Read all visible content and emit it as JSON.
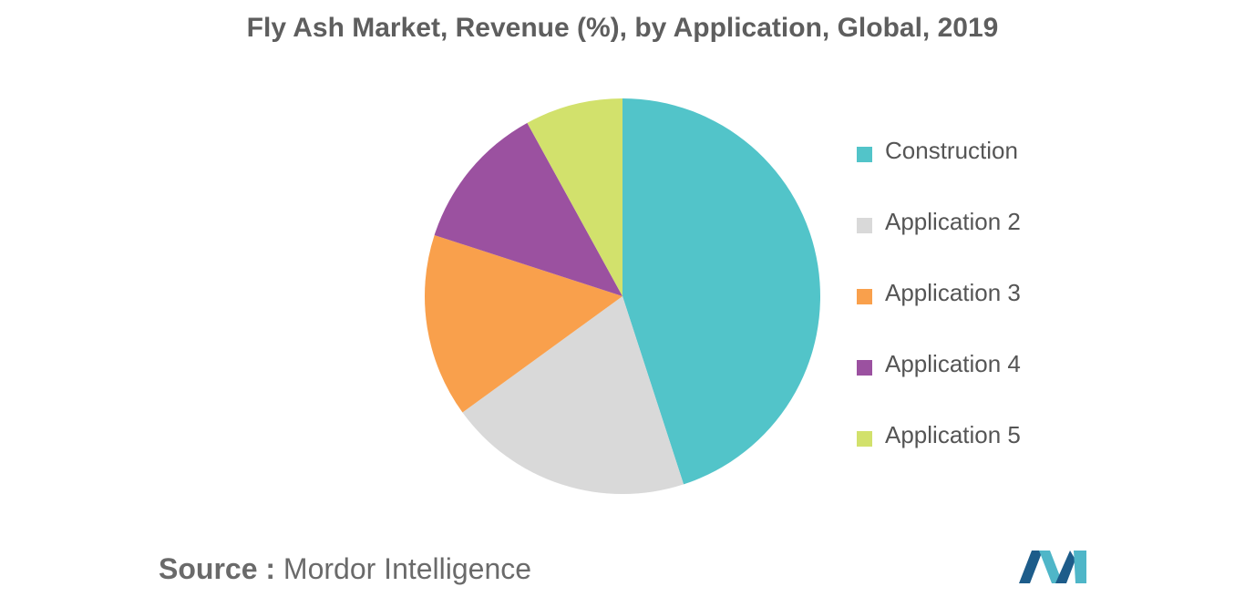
{
  "chart_data": {
    "type": "pie",
    "title": "Fly Ash Market, Revenue (%), by Application, Global, 2019",
    "categories": [
      "Construction",
      "Application 2",
      "Application 3",
      "Application 4",
      "Application 5"
    ],
    "values": [
      45,
      20,
      15,
      12,
      8
    ],
    "colors": [
      "#52c4c9",
      "#d9d9d9",
      "#f9a04c",
      "#9b51a0",
      "#d2e16c"
    ],
    "legend_position": "right",
    "start": "top",
    "direction": "clockwise"
  },
  "source": {
    "label": "Source :",
    "text": "Mordor Intelligence"
  },
  "logo": {
    "icon": "mordor-intelligence-logo-icon",
    "colors": [
      "#1d5c8a",
      "#4fb6c8"
    ]
  }
}
